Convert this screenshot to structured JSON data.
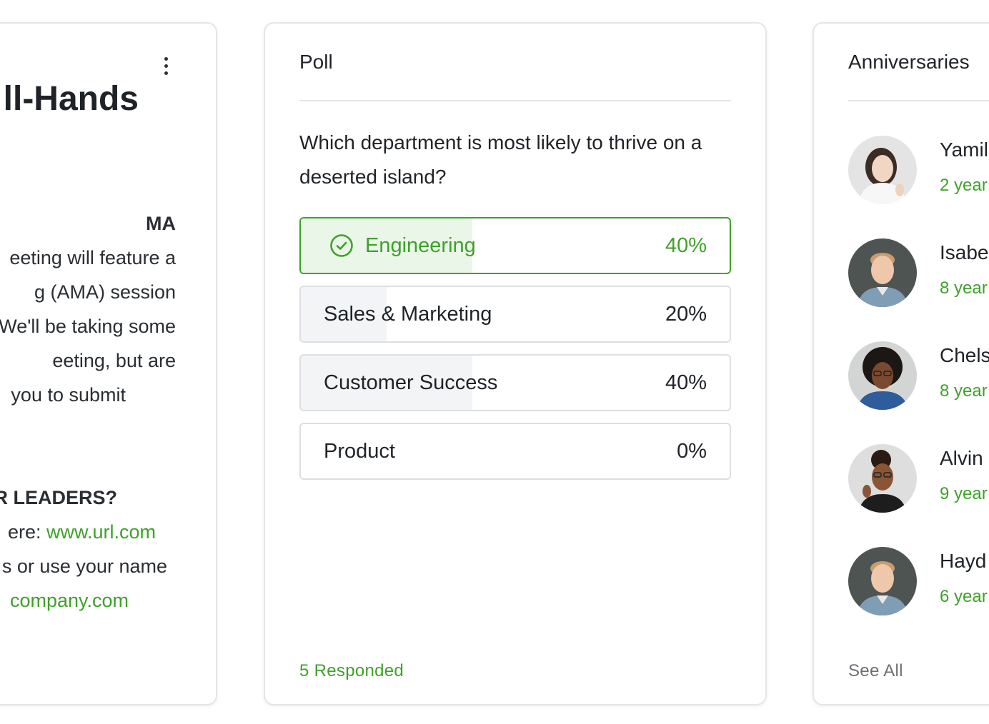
{
  "announcement_card": {
    "title": "ll-Hands",
    "lines": [
      "MA",
      "eeting will feature a",
      "g (AMA) session",
      "We'll be taking some",
      "eeting, but are",
      "you to submit",
      "UR LEADERS?",
      "ere: ",
      "www.url.com",
      "s or use your name",
      "company.com"
    ]
  },
  "poll_card": {
    "title": "Poll",
    "question": "Which department is most likely to thrive on a deserted island?",
    "options": [
      {
        "label": "Engineering",
        "percent_text": "40%",
        "percent": 40,
        "selected": true
      },
      {
        "label": "Sales & Marketing",
        "percent_text": "20%",
        "percent": 20,
        "selected": false
      },
      {
        "label": "Customer Success",
        "percent_text": "40%",
        "percent": 40,
        "selected": false
      },
      {
        "label": "Product",
        "percent_text": "0%",
        "percent": 0,
        "selected": false
      }
    ],
    "responded": "5 Responded"
  },
  "anniversaries_card": {
    "title": "Anniversaries",
    "people": [
      {
        "name": "Yamil",
        "years": "2 year"
      },
      {
        "name": "Isabe",
        "years": "8 year"
      },
      {
        "name": "Chels",
        "years": "8 year"
      },
      {
        "name": "Alvin",
        "years": "9 year"
      },
      {
        "name": "Hayd",
        "years": "6 year"
      }
    ],
    "see_all": "See All"
  },
  "colors": {
    "accent_green": "#3ea12a",
    "selected_fill": "#eaf6e7",
    "bar_fill": "#f3f4f5",
    "border": "#e3e5e8"
  }
}
